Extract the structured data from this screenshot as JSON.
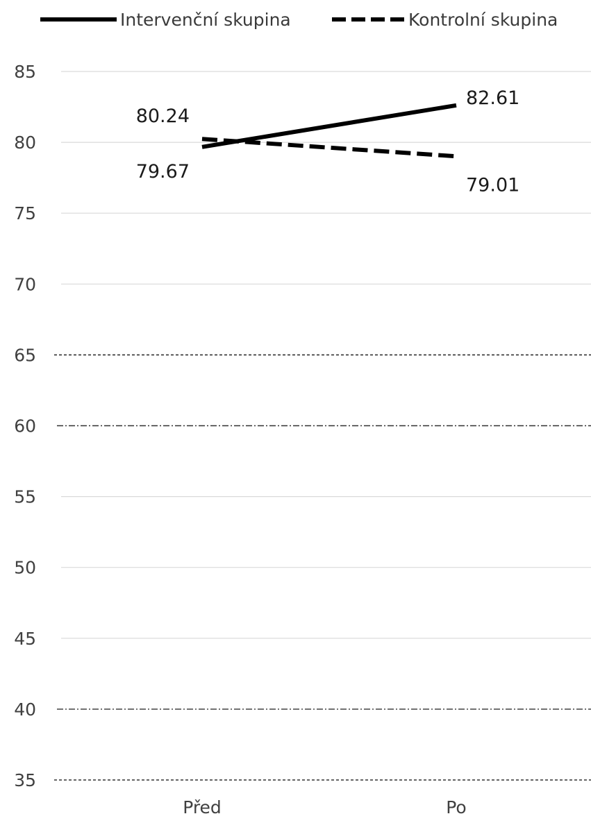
{
  "chart_data": {
    "type": "line",
    "title": "",
    "xlabel": "",
    "ylabel": "",
    "categories": [
      "Před",
      "Po"
    ],
    "ylim": [
      35,
      85
    ],
    "yticks": [
      85,
      80,
      75,
      70,
      65,
      60,
      55,
      50,
      45,
      40,
      35
    ],
    "yticks_text": [
      "85",
      "80",
      "75",
      "70",
      "65",
      "60",
      "55",
      "50",
      "45",
      "40",
      "35"
    ],
    "grid": true,
    "legend_position": "top",
    "reference_lines": [
      {
        "y": 65,
        "style": "dotted"
      },
      {
        "y": 60,
        "style": "dash-dot"
      },
      {
        "y": 40,
        "style": "dash-dot"
      },
      {
        "y": 35,
        "style": "dotted"
      }
    ],
    "series": [
      {
        "name": "Intervenční skupina",
        "line_style": "solid",
        "color": "#000000",
        "values": [
          79.67,
          82.61
        ],
        "labels": [
          "79.67",
          "82.61"
        ]
      },
      {
        "name": "Kontrolní skupina",
        "line_style": "dashed",
        "color": "#000000",
        "values": [
          80.24,
          79.01
        ],
        "labels": [
          "80.24",
          "79.01"
        ]
      }
    ]
  }
}
